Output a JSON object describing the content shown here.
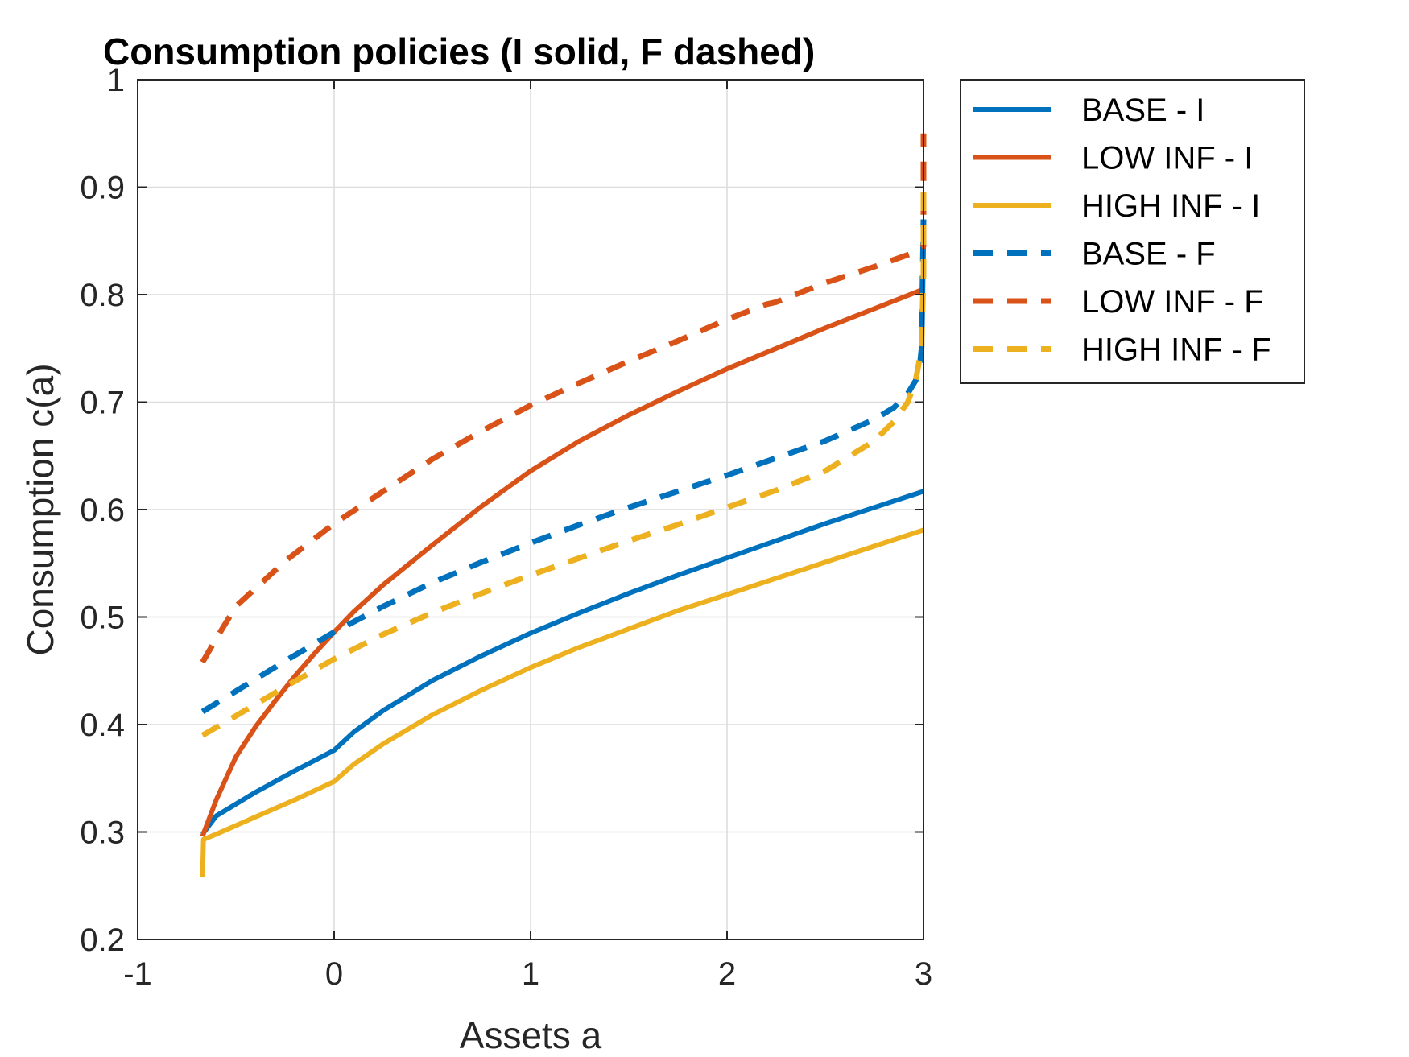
{
  "chart_data": {
    "type": "line",
    "title": "Consumption policies (I solid, F dashed)",
    "xlabel": "Assets a",
    "ylabel": "Consumption c(a)",
    "xlim": [
      -1,
      3
    ],
    "ylim": [
      0.2,
      1
    ],
    "xticks": [
      -1,
      0,
      1,
      2,
      3
    ],
    "xtick_labels": [
      "-1",
      "0",
      "1",
      "2",
      "3"
    ],
    "yticks": [
      0.2,
      0.3,
      0.4,
      0.5,
      0.6,
      0.7,
      0.8,
      0.9,
      1
    ],
    "ytick_labels": [
      "0.2",
      "0.3",
      "0.4",
      "0.5",
      "0.6",
      "0.7",
      "0.8",
      "0.9",
      "1"
    ],
    "grid": true,
    "legend_position": "outside-top-right",
    "series": [
      {
        "name": "BASE - I",
        "color": "#0072BD",
        "style": "solid",
        "points": [
          [
            -0.67,
            0.298
          ],
          [
            -0.6,
            0.315
          ],
          [
            -0.4,
            0.337
          ],
          [
            -0.2,
            0.357
          ],
          [
            0,
            0.376
          ],
          [
            0.1,
            0.393
          ],
          [
            0.25,
            0.413
          ],
          [
            0.5,
            0.441
          ],
          [
            0.75,
            0.464
          ],
          [
            1,
            0.485
          ],
          [
            1.25,
            0.504
          ],
          [
            1.5,
            0.522
          ],
          [
            1.75,
            0.539
          ],
          [
            2,
            0.555
          ],
          [
            2.25,
            0.571
          ],
          [
            2.5,
            0.587
          ],
          [
            2.75,
            0.602
          ],
          [
            3,
            0.617
          ]
        ]
      },
      {
        "name": "LOW INF - I",
        "color": "#D95319",
        "style": "solid",
        "points": [
          [
            -0.67,
            0.296
          ],
          [
            -0.6,
            0.33
          ],
          [
            -0.5,
            0.37
          ],
          [
            -0.4,
            0.398
          ],
          [
            -0.3,
            0.422
          ],
          [
            -0.2,
            0.445
          ],
          [
            -0.1,
            0.466
          ],
          [
            0,
            0.486
          ],
          [
            0.1,
            0.505
          ],
          [
            0.25,
            0.53
          ],
          [
            0.5,
            0.567
          ],
          [
            0.75,
            0.603
          ],
          [
            1,
            0.636
          ],
          [
            1.25,
            0.664
          ],
          [
            1.5,
            0.688
          ],
          [
            1.75,
            0.71
          ],
          [
            2,
            0.731
          ],
          [
            2.25,
            0.75
          ],
          [
            2.5,
            0.769
          ],
          [
            2.75,
            0.787
          ],
          [
            3,
            0.805
          ]
        ]
      },
      {
        "name": "HIGH INF - I",
        "color": "#EDB120",
        "style": "solid",
        "points": [
          [
            -0.67,
            0.258
          ],
          [
            -0.665,
            0.293
          ],
          [
            -0.6,
            0.298
          ],
          [
            -0.4,
            0.314
          ],
          [
            -0.2,
            0.33
          ],
          [
            0,
            0.347
          ],
          [
            0.1,
            0.363
          ],
          [
            0.25,
            0.382
          ],
          [
            0.5,
            0.409
          ],
          [
            0.75,
            0.432
          ],
          [
            1,
            0.453
          ],
          [
            1.25,
            0.472
          ],
          [
            1.5,
            0.489
          ],
          [
            1.75,
            0.506
          ],
          [
            2,
            0.521
          ],
          [
            2.25,
            0.536
          ],
          [
            2.5,
            0.551
          ],
          [
            2.75,
            0.566
          ],
          [
            3,
            0.581
          ]
        ]
      },
      {
        "name": "BASE - F",
        "color": "#0072BD",
        "style": "dashed",
        "points": [
          [
            -0.67,
            0.412
          ],
          [
            -0.5,
            0.431
          ],
          [
            -0.25,
            0.459
          ],
          [
            0,
            0.486
          ],
          [
            0.25,
            0.51
          ],
          [
            0.5,
            0.532
          ],
          [
            0.75,
            0.551
          ],
          [
            1,
            0.569
          ],
          [
            1.25,
            0.586
          ],
          [
            1.5,
            0.602
          ],
          [
            1.75,
            0.617
          ],
          [
            2,
            0.632
          ],
          [
            2.25,
            0.648
          ],
          [
            2.5,
            0.664
          ],
          [
            2.75,
            0.684
          ],
          [
            2.85,
            0.695
          ],
          [
            2.92,
            0.708
          ],
          [
            2.96,
            0.72
          ],
          [
            2.98,
            0.732
          ],
          [
            2.99,
            0.75
          ],
          [
            3,
            0.87
          ]
        ]
      },
      {
        "name": "LOW INF - F",
        "color": "#D95319",
        "style": "dashed",
        "points": [
          [
            -0.67,
            0.458
          ],
          [
            -0.6,
            0.48
          ],
          [
            -0.5,
            0.51
          ],
          [
            -0.25,
            0.552
          ],
          [
            0,
            0.587
          ],
          [
            0.25,
            0.617
          ],
          [
            0.5,
            0.647
          ],
          [
            0.75,
            0.673
          ],
          [
            1,
            0.697
          ],
          [
            1.25,
            0.718
          ],
          [
            1.5,
            0.738
          ],
          [
            1.75,
            0.757
          ],
          [
            2,
            0.777
          ],
          [
            2.2,
            0.791
          ],
          [
            2.25,
            0.793
          ],
          [
            2.5,
            0.811
          ],
          [
            2.75,
            0.826
          ],
          [
            2.95,
            0.839
          ],
          [
            3,
            0.845
          ],
          [
            3,
            0.95
          ]
        ]
      },
      {
        "name": "HIGH INF - F",
        "color": "#EDB120",
        "style": "dashed",
        "points": [
          [
            -0.67,
            0.39
          ],
          [
            -0.5,
            0.408
          ],
          [
            -0.25,
            0.435
          ],
          [
            0,
            0.461
          ],
          [
            0.25,
            0.484
          ],
          [
            0.5,
            0.504
          ],
          [
            0.75,
            0.522
          ],
          [
            1,
            0.539
          ],
          [
            1.25,
            0.555
          ],
          [
            1.5,
            0.571
          ],
          [
            1.75,
            0.586
          ],
          [
            2,
            0.602
          ],
          [
            2.25,
            0.618
          ],
          [
            2.5,
            0.636
          ],
          [
            2.75,
            0.664
          ],
          [
            2.85,
            0.682
          ],
          [
            2.92,
            0.7
          ],
          [
            2.96,
            0.72
          ],
          [
            2.99,
            0.75
          ],
          [
            3,
            0.82
          ],
          [
            3,
            0.9
          ]
        ]
      }
    ]
  }
}
